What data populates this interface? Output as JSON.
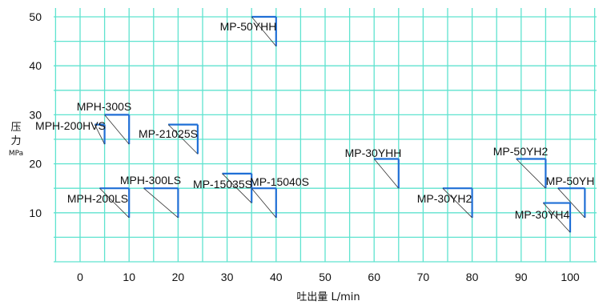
{
  "chart_data": {
    "type": "scatter",
    "title": "",
    "xlabel": "吐出量 L/min",
    "ylabel": "压力",
    "ylabel_unit": "MPa",
    "xlim": [
      -5,
      105
    ],
    "ylim": [
      0,
      50
    ],
    "x_ticks": [
      0,
      10,
      20,
      30,
      40,
      50,
      60,
      70,
      80,
      90,
      100
    ],
    "y_ticks": [
      10,
      20,
      30,
      40,
      50
    ],
    "grid": true,
    "colors": {
      "grid": "#5fe3cf",
      "marker": "#1f6fd6",
      "text": "#111111"
    },
    "points": [
      {
        "model": "MP-50YHH",
        "x_min": 35,
        "x": 40,
        "y": 50,
        "y_low": 44
      },
      {
        "model": "MPH-300S",
        "x_min": 5,
        "x": 10,
        "y": 30,
        "y_low": 24
      },
      {
        "model": "MPH-200HVS",
        "x_min": 3,
        "x": 5,
        "y": 28,
        "y_low": 24
      },
      {
        "model": "MP-21025S",
        "x_min": 18,
        "x": 24,
        "y": 28,
        "y_low": 22
      },
      {
        "model": "MPH-300LS",
        "x_min": 13,
        "x": 20,
        "y": 15,
        "y_low": 9
      },
      {
        "model": "MPH-200LS",
        "x_min": 4,
        "x": 10,
        "y": 15,
        "y_low": 9
      },
      {
        "model": "MP-15035S",
        "x_min": 29,
        "x": 35,
        "y": 18,
        "y_low": 12
      },
      {
        "model": "MP-15040S",
        "x_min": 35,
        "x": 40,
        "y": 15,
        "y_low": 9
      },
      {
        "model": "MP-30YHH",
        "x_min": 60,
        "x": 65,
        "y": 21,
        "y_low": 15
      },
      {
        "model": "MP-30YH2",
        "x_min": 74,
        "x": 80,
        "y": 15,
        "y_low": 9
      },
      {
        "model": "MP-50YH2",
        "x_min": 89,
        "x": 95,
        "y": 21,
        "y_low": 15
      },
      {
        "model": "MP-50YH",
        "x_min": 97.5,
        "x": 103,
        "y": 15,
        "y_low": 9
      },
      {
        "model": "MP-30YH4",
        "x_min": 94.5,
        "x": 100,
        "y": 12,
        "y_low": 6
      }
    ]
  }
}
